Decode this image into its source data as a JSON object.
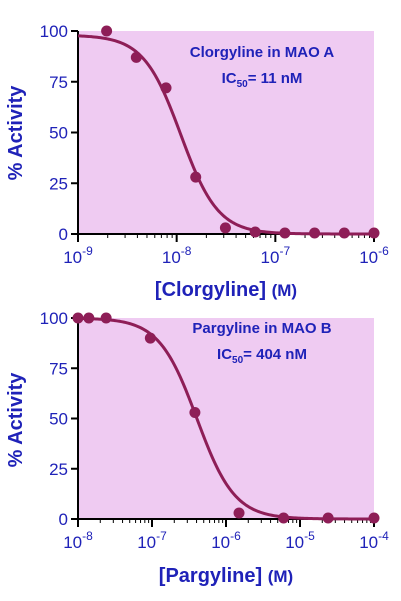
{
  "colors": {
    "plot_bg": "#EFCBF2",
    "curve": "#8E1E57",
    "point": "#8E1E57",
    "text": "#1F22B8",
    "axis": "#000000"
  },
  "chart_data": [
    {
      "type": "scatter",
      "xscale": "log",
      "xlim": [
        "1e-9",
        "1e-6"
      ],
      "ylim": [
        0,
        100
      ],
      "ylabel": "% Activity",
      "xlabel": {
        "text": "[Clorgyline]",
        "unit": "(M)"
      },
      "x_tick_labels": [
        {
          "base": "10",
          "exp": "-9"
        },
        {
          "base": "10",
          "exp": "-8"
        },
        {
          "base": "10",
          "exp": "-7"
        },
        {
          "base": "10",
          "exp": "-6"
        }
      ],
      "y_ticks": [
        0,
        25,
        50,
        75,
        100
      ],
      "y_tick_labels": [
        "0",
        "25",
        "50",
        "75",
        "100"
      ],
      "annotation": {
        "line1": "Clorgyline in MAO A",
        "ic_prefix": "IC",
        "ic_sub": "50",
        "ic_value": "= 11 nM"
      },
      "series": [
        {
          "x": [
            "1.95e-9",
            "3.9e-9",
            "7.8e-9",
            "1.56e-8",
            "3.12e-8",
            "6.25e-8",
            "1.25e-7",
            "2.5e-7",
            "5e-7",
            "1e-6"
          ],
          "values": [
            100,
            87,
            72,
            28,
            3,
            1,
            0.5,
            0.5,
            0.5,
            0.5
          ]
        }
      ],
      "fit": {
        "type": "four-parameter logistic",
        "top": 98,
        "bottom": 0,
        "ic50": "1.1e-8",
        "hill": 2.3
      },
      "grid": false
    },
    {
      "type": "scatter",
      "xscale": "log",
      "xlim": [
        "1e-8",
        "1e-4"
      ],
      "ylim": [
        0,
        100
      ],
      "ylabel": "% Activity",
      "xlabel": {
        "text": "[Pargyline]",
        "unit": "(M)"
      },
      "x_tick_labels": [
        {
          "base": "10",
          "exp": "-8"
        },
        {
          "base": "10",
          "exp": "-7"
        },
        {
          "base": "10",
          "exp": "-6"
        },
        {
          "base": "10",
          "exp": "-5"
        },
        {
          "base": "10",
          "exp": "-4"
        }
      ],
      "y_ticks": [
        0,
        25,
        50,
        75,
        100
      ],
      "y_tick_labels": [
        "0",
        "25",
        "50",
        "75",
        "100"
      ],
      "annotation": {
        "line1": "Pargyline in MAO B",
        "ic_prefix": "IC",
        "ic_sub": "50",
        "ic_value": "= 404 nM"
      },
      "series": [
        {
          "x": [
            "1e-8",
            "1.4e-8",
            "2.4e-8",
            "9.5e-8",
            "3.8e-7",
            "1.5e-6",
            "6e-6",
            "2.4e-5",
            "1e-4"
          ],
          "values": [
            100,
            100,
            100,
            90,
            53,
            3,
            0.5,
            0.5,
            0.5
          ]
        }
      ],
      "fit": {
        "type": "four-parameter logistic",
        "top": 100,
        "bottom": 0,
        "ic50": "4.04e-7",
        "hill": 1.7
      },
      "grid": false
    }
  ]
}
